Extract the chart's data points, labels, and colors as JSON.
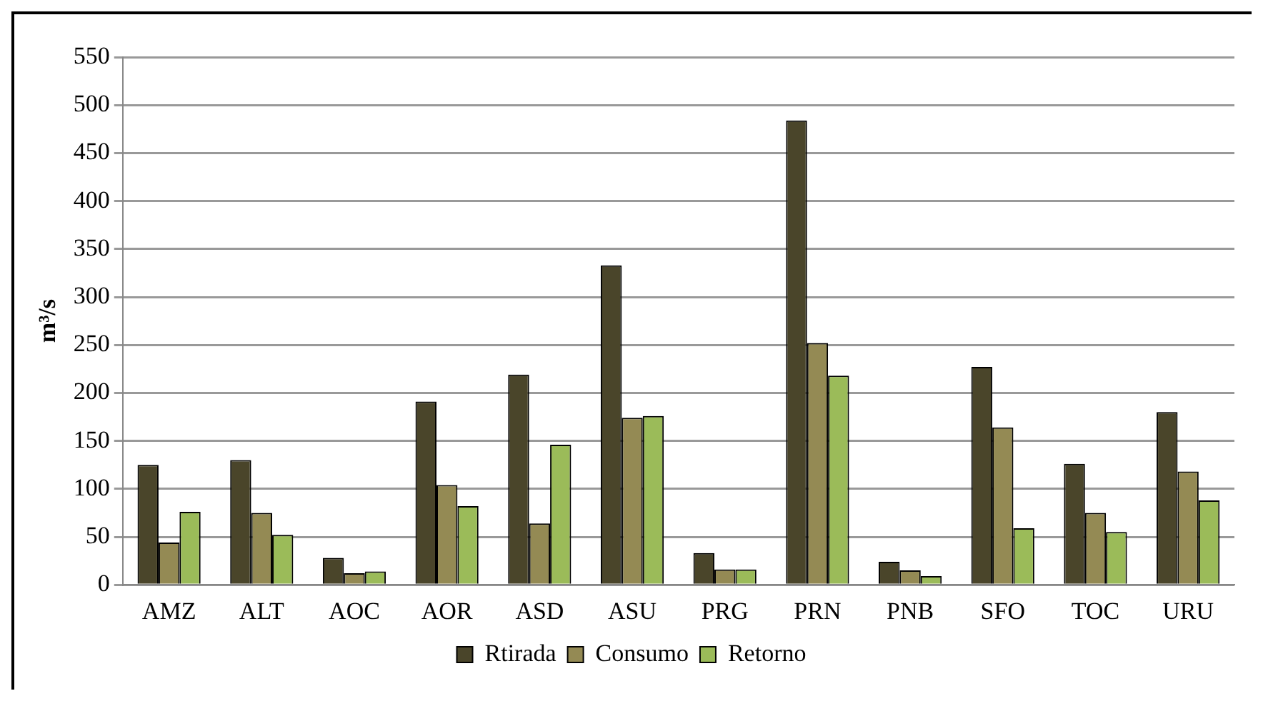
{
  "chart_data": {
    "type": "bar",
    "ylabel": "m³/s",
    "categories": [
      "AMZ",
      "ALT",
      "AOC",
      "AOR",
      "ASD",
      "ASU",
      "PRG",
      "PRN",
      "PNB",
      "SFO",
      "TOC",
      "URU"
    ],
    "series": [
      {
        "name": "Rtirada",
        "color": "#4a452a",
        "values": [
          125,
          130,
          28,
          191,
          219,
          333,
          33,
          484,
          24,
          227,
          126,
          180
        ]
      },
      {
        "name": "Consumo",
        "color": "#948a54",
        "values": [
          44,
          75,
          12,
          104,
          64,
          174,
          16,
          252,
          15,
          164,
          75,
          118
        ]
      },
      {
        "name": "Retorno",
        "color": "#9bbb59",
        "values": [
          76,
          52,
          14,
          82,
          146,
          176,
          16,
          218,
          9,
          59,
          55,
          88
        ]
      }
    ],
    "ylim": [
      0,
      550
    ],
    "yticks": [
      0,
      50,
      100,
      150,
      200,
      250,
      300,
      350,
      400,
      450,
      500,
      550
    ],
    "grid": "y",
    "legend": "bottom"
  }
}
